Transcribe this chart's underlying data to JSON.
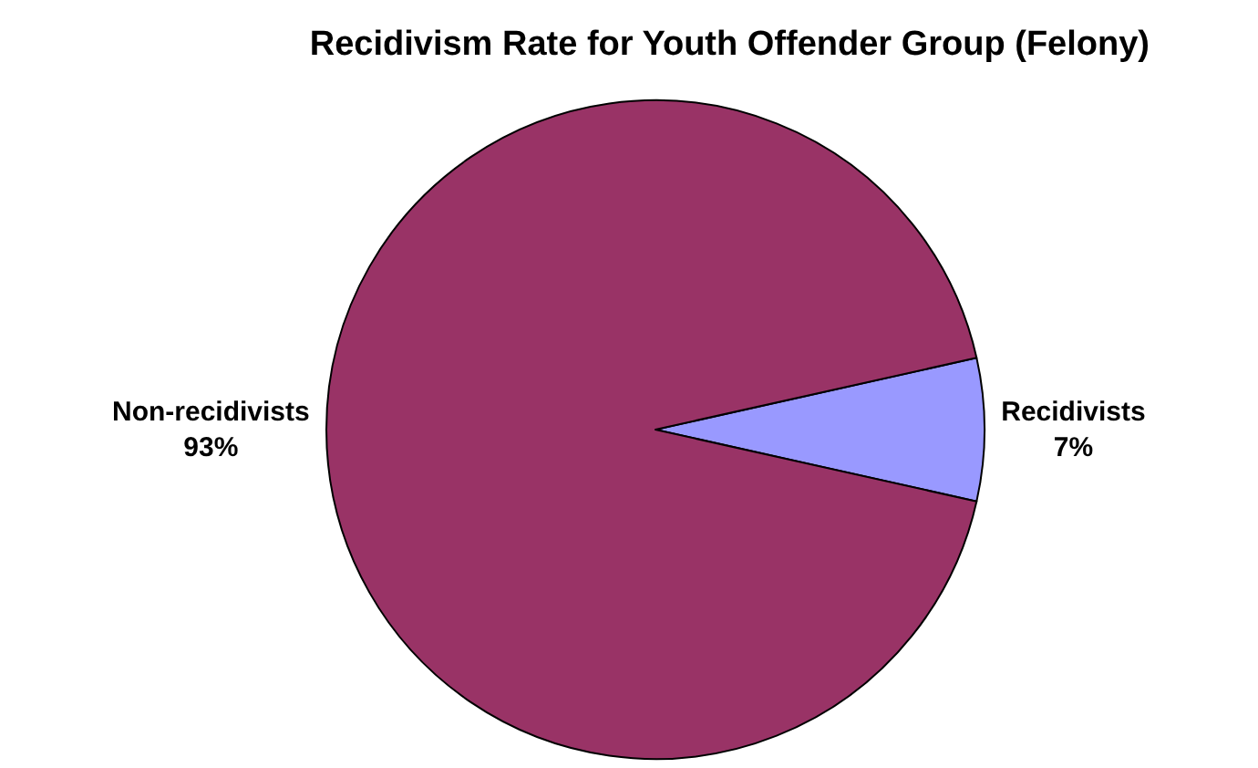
{
  "chart_data": {
    "type": "pie",
    "title": "Recidivism Rate for Youth Offender Group (Felony)",
    "categories": [
      "Recidivists",
      "Non-recidivists"
    ],
    "values": [
      7,
      93
    ],
    "value_labels": [
      "7%",
      "93%"
    ],
    "colors": [
      "#9999ff",
      "#993366"
    ]
  }
}
